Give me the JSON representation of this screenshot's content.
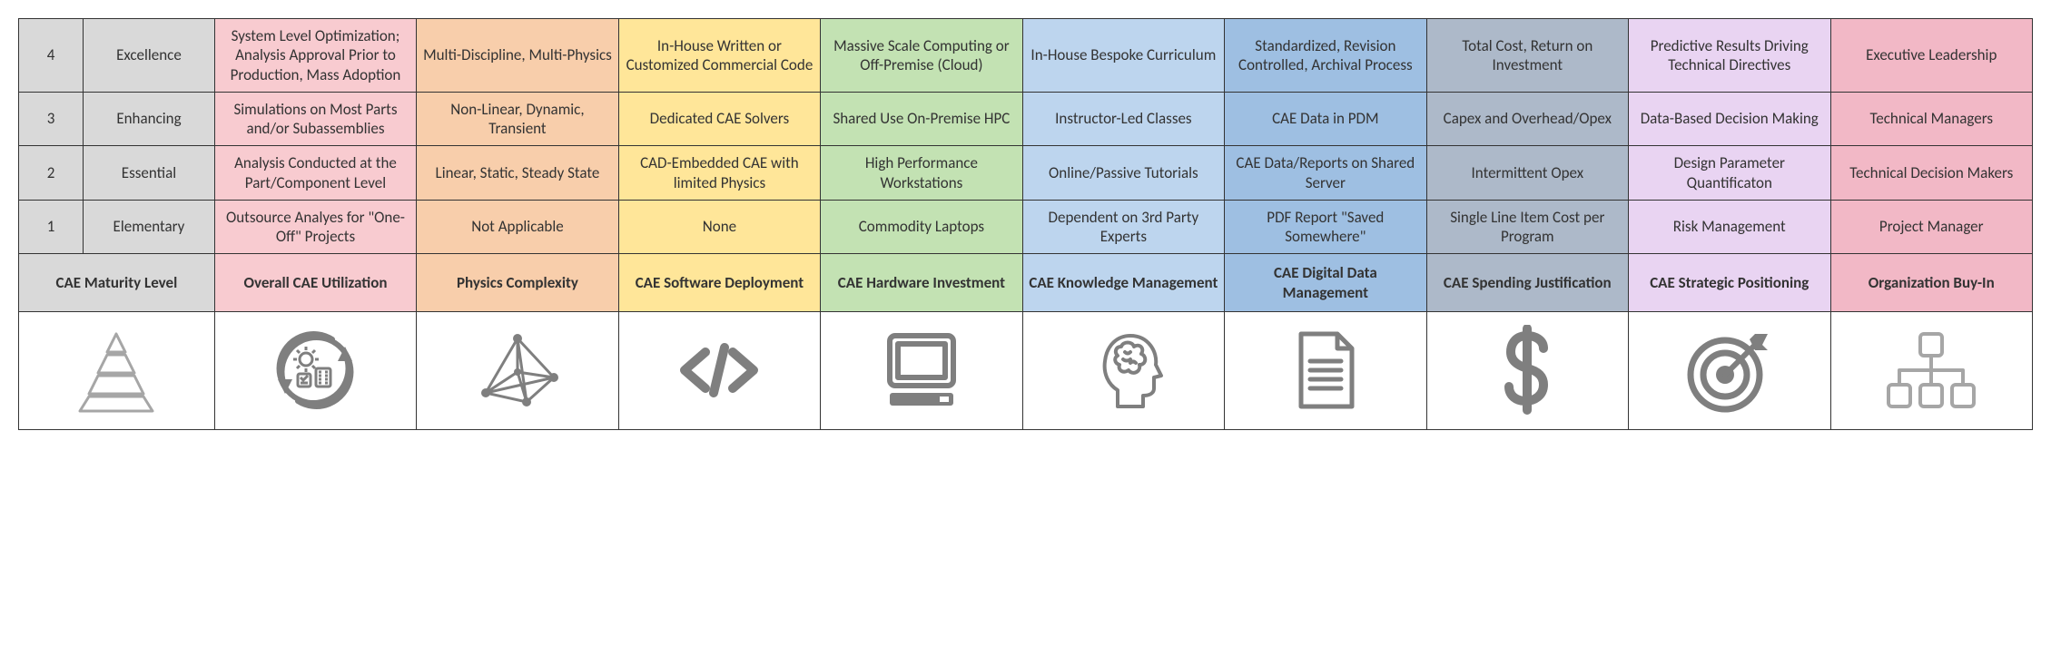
{
  "colors": {
    "grey": "#d9d9d9",
    "pink": "#f8cbd0",
    "orange": "#f8ceab",
    "yellow": "#ffe699",
    "green": "#c3e2b3",
    "blue": "#bdd5ee",
    "blue2": "#9ebfe2",
    "bluegrey": "#adb9c9",
    "lilac": "#e9d4f2",
    "rose": "#f2b8c6",
    "icon": "#7f7f7f",
    "icon_light": "#a6a6a6"
  },
  "levels": [
    {
      "num": "4",
      "name": "Excellence"
    },
    {
      "num": "3",
      "name": "Enhancing"
    },
    {
      "num": "2",
      "name": "Essential"
    },
    {
      "num": "1",
      "name": "Elementary"
    }
  ],
  "columns": [
    {
      "key": "utilization",
      "header": "Overall CAE Utilization",
      "color": "pink",
      "cells": [
        "System Level Optimization; Analysis Approval Prior to Production, Mass Adoption",
        "Simulations on Most Parts and/or Subassemblies",
        "Analysis Conducted at the Part/Component Level",
        "Outsource Analyes for \"One-Off\" Projects"
      ]
    },
    {
      "key": "physics",
      "header": "Physics Complexity",
      "color": "orange",
      "cells": [
        "Multi-Discipline, Multi-Physics",
        "Non-Linear, Dynamic, Transient",
        "Linear, Static, Steady State",
        "Not Applicable"
      ]
    },
    {
      "key": "software",
      "header": "CAE Software Deployment",
      "color": "yellow",
      "cells": [
        "In-House Written or Customized Commercial Code",
        "Dedicated CAE Solvers",
        "CAD-Embedded CAE with limited Physics",
        "None"
      ]
    },
    {
      "key": "hardware",
      "header": "CAE Hardware Investment",
      "color": "green",
      "cells": [
        "Massive Scale Computing or Off-Premise (Cloud)",
        "Shared Use On-Premise HPC",
        "High Performance Workstations",
        "Commodity Laptops"
      ]
    },
    {
      "key": "knowledge",
      "header": "CAE Knowledge Management",
      "color": "blue",
      "cells": [
        "In-House Bespoke Curriculum",
        "Instructor-Led Classes",
        "Online/Passive Tutorials",
        "Dependent on 3rd Party Experts"
      ]
    },
    {
      "key": "data",
      "header": "CAE Digital Data Management",
      "color": "blue2",
      "cells": [
        "Standardized, Revision Controlled, Archival Process",
        "CAE Data in PDM",
        "CAE Data/Reports on Shared Server",
        "PDF Report \"Saved Somewhere\""
      ]
    },
    {
      "key": "spending",
      "header": "CAE Spending Justification",
      "color": "bluegrey",
      "cells": [
        "Total Cost, Return on Investment",
        "Capex and Overhead/Opex",
        "Intermittent Opex",
        "Single Line Item Cost per Program"
      ]
    },
    {
      "key": "strategic",
      "header": "CAE Strategic Positioning",
      "color": "lilac",
      "cells": [
        "Predictive Results Driving Technical Directives",
        "Data-Based Decision Making",
        "Design Parameter Quantificaton",
        "Risk Management"
      ]
    },
    {
      "key": "buyin",
      "header": "Organization Buy-In",
      "color": "rose",
      "cells": [
        "Executive Leadership",
        "Technical Managers",
        "Technical Decision Makers",
        "Project Manager"
      ]
    }
  ],
  "maturity_header": "CAE Maturity Level"
}
